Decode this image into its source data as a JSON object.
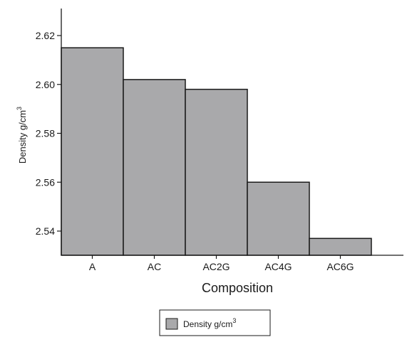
{
  "chart_data": {
    "type": "bar",
    "categories": [
      "A",
      "AC",
      "AC2G",
      "AC4G",
      "AC6G"
    ],
    "series": [
      {
        "name": "Density g/cm3",
        "values": [
          2.615,
          2.602,
          2.598,
          2.56,
          2.537
        ]
      }
    ],
    "xlabel": "Composition",
    "ylabel": {
      "text": "Density g/cm",
      "superscript": "3"
    },
    "yticks": [
      "2.54",
      "2.56",
      "2.58",
      "2.60",
      "2.62"
    ],
    "ylim": [
      2.53,
      2.63
    ],
    "grid": false,
    "legend": {
      "position": "bottom-center",
      "label": "Density g/cm",
      "superscript": "3"
    },
    "bar_color": "#a9a9ab"
  }
}
